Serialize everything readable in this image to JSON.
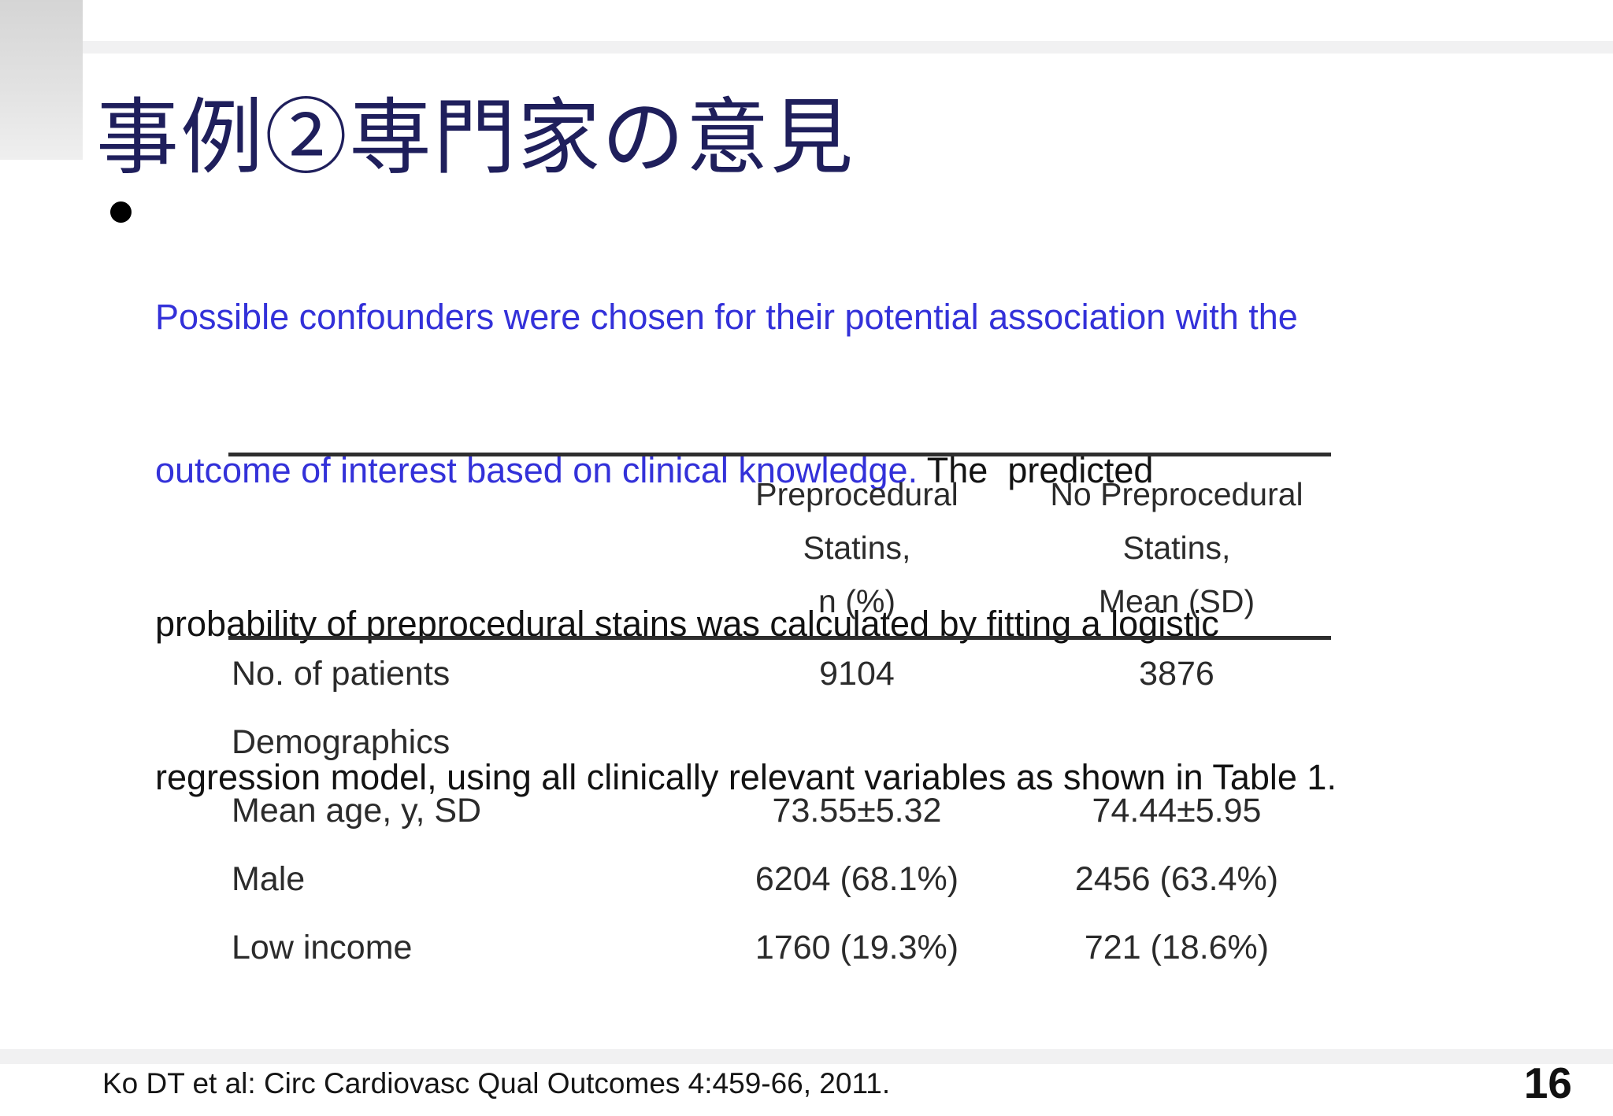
{
  "slide": {
    "title": "事例②専門家の意見",
    "citation": "Ko DT et al: Circ Cardiovasc Qual Outcomes 4:459-66, 2011.",
    "page_number": "16"
  },
  "bullet": {
    "line1_blue": "Possible confounders were chosen for their potential association with the",
    "line2_blue": "outcome of interest based on clinical knowledge.",
    "line2_black": " The  predicted",
    "line3": "probability of preprocedural stains was calculated by fitting a logistic",
    "line4": "regression model, using all clinically relevant variables as shown in Table 1."
  },
  "table": {
    "header": {
      "col2_line1": "Preprocedural",
      "col2_line2": "Statins,",
      "col2_line3": "n (%)",
      "col3_line1": "No Preprocedural",
      "col3_line2": "Statins,",
      "col3_line3": "Mean (SD)"
    },
    "rows": [
      {
        "label": "No. of patients",
        "col2": "9104",
        "col3": "3876"
      },
      {
        "label": "Demographics",
        "col2": "",
        "col3": ""
      },
      {
        "label": "Mean age, y, SD",
        "col2": "73.55±5.32",
        "col3": "74.44±5.95"
      },
      {
        "label": "Male",
        "col2": "6204 (68.1%)",
        "col3": "2456 (63.4%)"
      },
      {
        "label": "Low income",
        "col2": "1760 (19.3%)",
        "col3": "721 (18.6%)"
      }
    ]
  },
  "colors": {
    "title_navy": "#1f1f5c",
    "bullet_blue": "#3331d9",
    "body_text": "#121212",
    "table_rule": "#2e2e2e",
    "stripe_gray": "#f1f1f2"
  }
}
